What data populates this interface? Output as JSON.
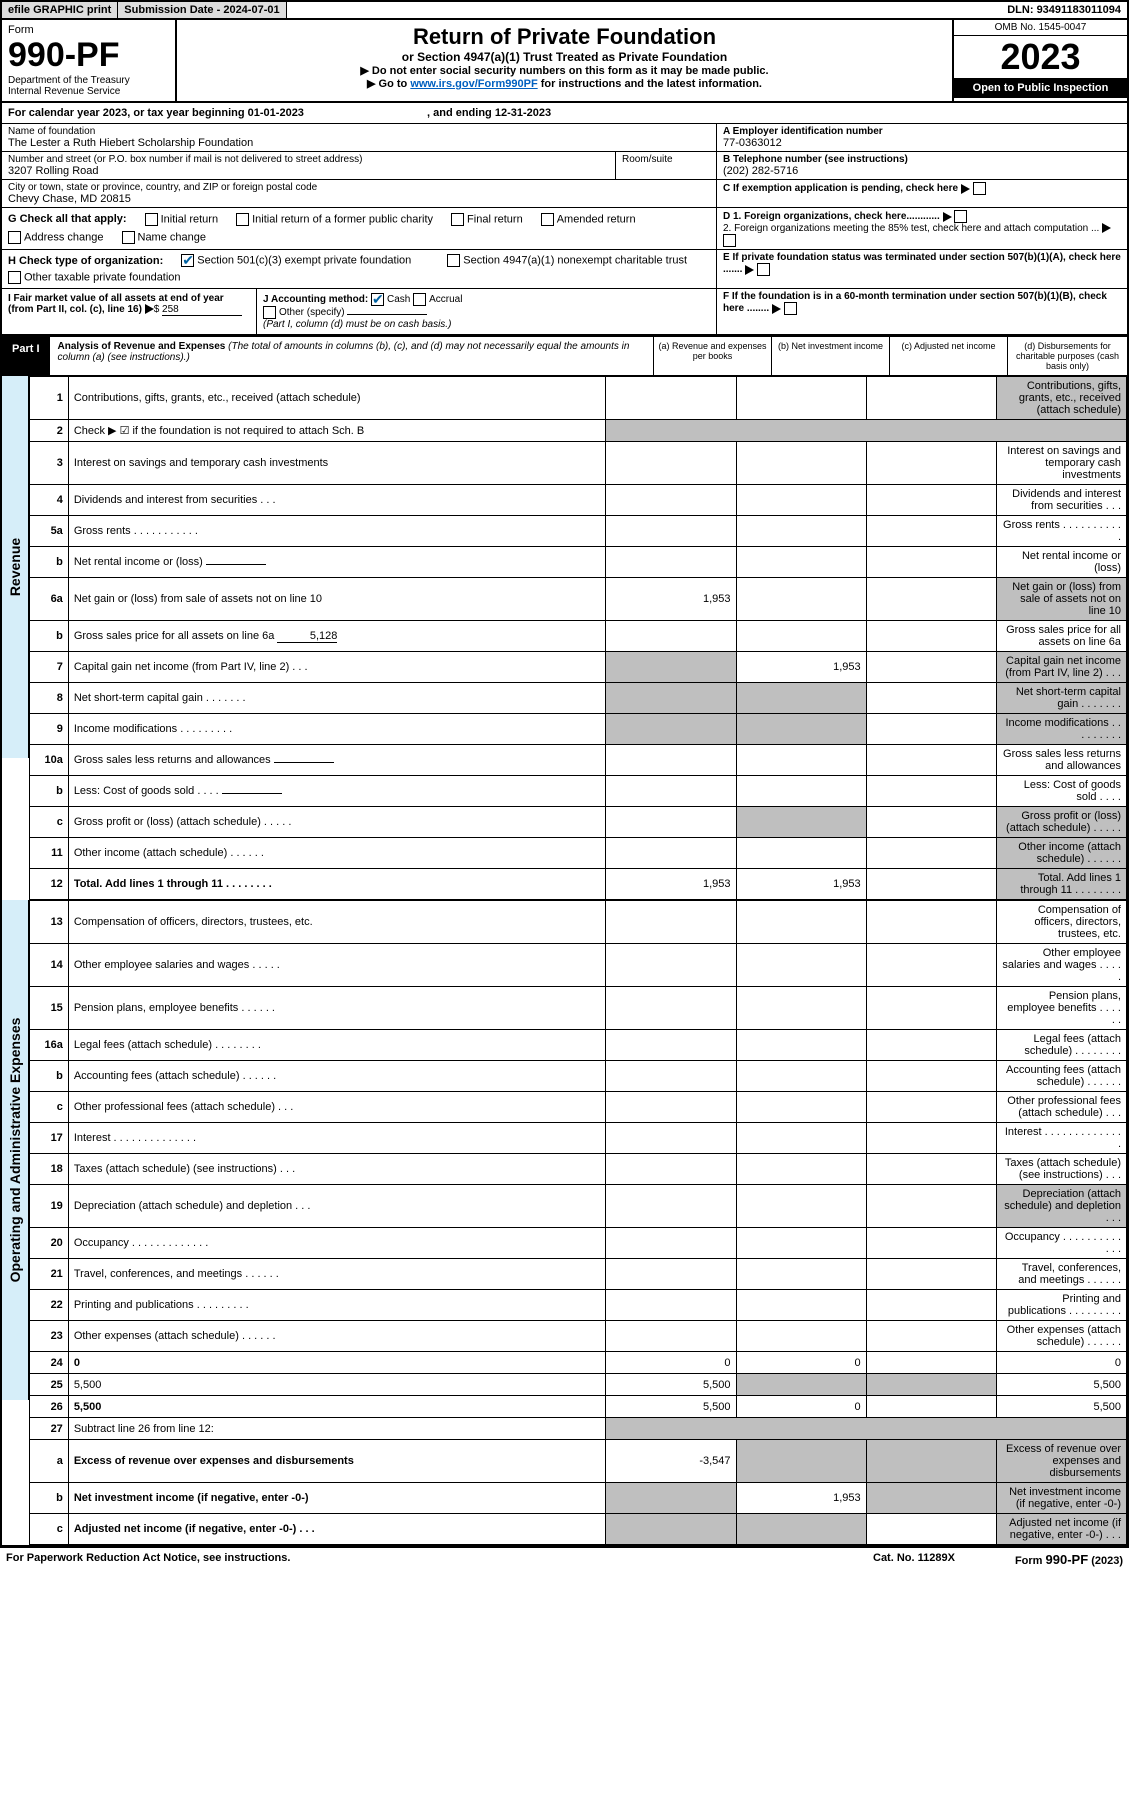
{
  "topbar": {
    "efile": "efile GRAPHIC print",
    "subdate_label": "Submission Date - ",
    "subdate": "2024-07-01",
    "dln_label": "DLN: ",
    "dln": "93491183011094"
  },
  "form": {
    "label": "Form",
    "number": "990-PF",
    "dept1": "Department of the Treasury",
    "dept2": "Internal Revenue Service",
    "title": "Return of Private Foundation",
    "subtitle": "or Section 4947(a)(1) Trust Treated as Private Foundation",
    "note1": "▶ Do not enter social security numbers on this form as it may be made public.",
    "note2_pre": "▶ Go to ",
    "note2_link": "www.irs.gov/Form990PF",
    "note2_post": " for instructions and the latest information.",
    "omb": "OMB No. 1545-0047",
    "year": "2023",
    "open": "Open to Public Inspection"
  },
  "calyear": {
    "pre": "For calendar year 2023, or tax year beginning ",
    "begin": "01-01-2023",
    "mid": " , and ending ",
    "end": "12-31-2023"
  },
  "org": {
    "name_label": "Name of foundation",
    "name": "The Lester a Ruth Hiebert Scholarship Foundation",
    "addr_label": "Number and street (or P.O. box number if mail is not delivered to street address)",
    "addr": "3207 Rolling Road",
    "room_label": "Room/suite",
    "city_label": "City or town, state or province, country, and ZIP or foreign postal code",
    "city": "Chevy Chase, MD  20815",
    "a_label": "A Employer identification number",
    "a_val": "77-0363012",
    "b_label": "B Telephone number (see instructions)",
    "b_val": "(202) 282-5716",
    "c_label": "C If exemption application is pending, check here",
    "d1": "D 1. Foreign organizations, check here............",
    "d2": "2. Foreign organizations meeting the 85% test, check here and attach computation ...",
    "e": "E  If private foundation status was terminated under section 507(b)(1)(A), check here .......",
    "f": "F  If the foundation is in a 60-month termination under section 507(b)(1)(B), check here ........"
  },
  "g": {
    "label": "G Check all that apply:",
    "opts": [
      "Initial return",
      "Initial return of a former public charity",
      "Final return",
      "Amended return",
      "Address change",
      "Name change"
    ]
  },
  "h": {
    "label": "H Check type of organization:",
    "opt1": "Section 501(c)(3) exempt private foundation",
    "opt2": "Section 4947(a)(1) nonexempt charitable trust",
    "opt3": "Other taxable private foundation"
  },
  "i": {
    "label": "I Fair market value of all assets at end of year (from Part II, col. (c), line 16)",
    "val": "258"
  },
  "j": {
    "label": "J Accounting method:",
    "cash": "Cash",
    "accrual": "Accrual",
    "other": "Other (specify)",
    "note": "(Part I, column (d) must be on cash basis.)"
  },
  "part1": {
    "tag": "Part I",
    "title": "Analysis of Revenue and Expenses",
    "note": "(The total of amounts in columns (b), (c), and (d) may not necessarily equal the amounts in column (a) (see instructions).)",
    "cols": {
      "a": "(a)   Revenue and expenses per books",
      "b": "(b)   Net investment income",
      "c": "(c)   Adjusted net income",
      "d": "(d)   Disbursements for charitable purposes (cash basis only)"
    }
  },
  "side": {
    "rev": "Revenue",
    "exp": "Operating and Administrative Expenses"
  },
  "rows": [
    {
      "n": "1",
      "d": "Contributions, gifts, grants, etc., received (attach schedule)",
      "shade_d": true
    },
    {
      "n": "2",
      "d": "Check ▶ ☑ if the foundation is not required to attach Sch. B",
      "span": true
    },
    {
      "n": "3",
      "d": "Interest on savings and temporary cash investments"
    },
    {
      "n": "4",
      "d": "Dividends and interest from securities     .   .   ."
    },
    {
      "n": "5a",
      "d": "Gross rents   .   .   .   .   .   .   .   .   .   .   ."
    },
    {
      "n": "b",
      "d": "Net rental income or (loss)",
      "inline": true
    },
    {
      "n": "6a",
      "d": "Net gain or (loss) from sale of assets not on line 10",
      "a": "1,953",
      "shade_d": true
    },
    {
      "n": "b",
      "d": "Gross sales price for all assets on line 6a",
      "inline": true,
      "inline_val": "5,128"
    },
    {
      "n": "7",
      "d": "Capital gain net income (from Part IV, line 2)   .   .   .",
      "b": "1,953",
      "shade_a": true,
      "shade_d": true
    },
    {
      "n": "8",
      "d": "Net short-term capital gain   .   .   .   .   .   .   .",
      "shade_a": true,
      "shade_b": true,
      "shade_d": true
    },
    {
      "n": "9",
      "d": "Income modifications   .   .   .   .   .   .   .   .   .",
      "shade_a": true,
      "shade_b": true,
      "shade_d": true
    },
    {
      "n": "10a",
      "d": "Gross sales less returns and allowances",
      "inline": true
    },
    {
      "n": "b",
      "d": "Less: Cost of goods sold   .   .   .   .",
      "inline": true
    },
    {
      "n": "c",
      "d": "Gross profit or (loss) (attach schedule)   .   .   .   .   .",
      "shade_b": true,
      "shade_d": true
    },
    {
      "n": "11",
      "d": "Other income (attach schedule)   .   .   .   .   .   .",
      "shade_d": true
    },
    {
      "n": "12",
      "d": "Total. Add lines 1 through 11   .   .   .   .   .   .   .   .",
      "bold": true,
      "a": "1,953",
      "b": "1,953",
      "shade_d": true
    }
  ],
  "exp_rows": [
    {
      "n": "13",
      "d": "Compensation of officers, directors, trustees, etc."
    },
    {
      "n": "14",
      "d": "Other employee salaries and wages   .   .   .   .   ."
    },
    {
      "n": "15",
      "d": "Pension plans, employee benefits   .   .   .   .   .   ."
    },
    {
      "n": "16a",
      "d": "Legal fees (attach schedule)  .   .   .   .   .   .   .   ."
    },
    {
      "n": "b",
      "d": "Accounting fees (attach schedule)   .   .   .   .   .   ."
    },
    {
      "n": "c",
      "d": "Other professional fees (attach schedule)   .   .   ."
    },
    {
      "n": "17",
      "d": "Interest   .   .   .   .   .   .   .   .   .   .   .   .   .   ."
    },
    {
      "n": "18",
      "d": "Taxes (attach schedule) (see instructions)   .   .   ."
    },
    {
      "n": "19",
      "d": "Depreciation (attach schedule) and depletion   .   .   .",
      "shade_d": true
    },
    {
      "n": "20",
      "d": "Occupancy   .   .   .   .   .   .   .   .   .   .   .   .   ."
    },
    {
      "n": "21",
      "d": "Travel, conferences, and meetings   .   .   .   .   .   ."
    },
    {
      "n": "22",
      "d": "Printing and publications   .   .   .   .   .   .   .   .   ."
    },
    {
      "n": "23",
      "d": "Other expenses (attach schedule)   .   .   .   .   .   ."
    },
    {
      "n": "24",
      "d": "0",
      "bold": true,
      "a": "0",
      "b": "0"
    },
    {
      "n": "25",
      "d": "5,500",
      "a": "5,500",
      "shade_b": true,
      "shade_c": true
    },
    {
      "n": "26",
      "d": "5,500",
      "bold": true,
      "a": "5,500",
      "b": "0"
    },
    {
      "n": "27",
      "d": "Subtract line 26 from line 12:",
      "span": true
    },
    {
      "n": "a",
      "d": "Excess of revenue over expenses and disbursements",
      "bold": true,
      "a": "-3,547",
      "shade_b": true,
      "shade_c": true,
      "shade_d": true
    },
    {
      "n": "b",
      "d": "Net investment income (if negative, enter -0-)",
      "bold": true,
      "b": "1,953",
      "shade_a": true,
      "shade_c": true,
      "shade_d": true
    },
    {
      "n": "c",
      "d": "Adjusted net income (if negative, enter -0-)   .   .   .",
      "bold": true,
      "shade_a": true,
      "shade_b": true,
      "shade_d": true
    }
  ],
  "footer": {
    "left": "For Paperwork Reduction Act Notice, see instructions.",
    "mid": "Cat. No. 11289X",
    "right": "Form 990-PF (2023)"
  }
}
